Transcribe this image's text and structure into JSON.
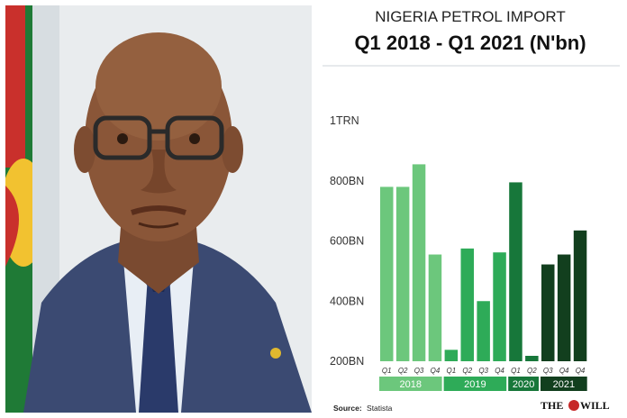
{
  "title_line1": "NIGERIA PETROL IMPORT",
  "title_line2": "Q1 2018 - Q1  2021 (N'bn)",
  "source_label": "Source:",
  "source_value": "Statista",
  "logo_left": "THE",
  "logo_right": "WILL",
  "colors": {
    "y2018": "#6cc77c",
    "y2019": "#2eab58",
    "y2020": "#17773a",
    "y2021": "#123f1e"
  },
  "chart_data": {
    "type": "bar",
    "title": "Q1 2018 - Q1  2021 (N'bn)",
    "ylim": [
      200,
      1000
    ],
    "yticks": [
      {
        "value": 200,
        "label": "200BN"
      },
      {
        "value": 400,
        "label": "400BN"
      },
      {
        "value": 600,
        "label": "600BN"
      },
      {
        "value": 800,
        "label": "800BN"
      },
      {
        "value": 1000,
        "label": "1TRN"
      }
    ],
    "groups": [
      {
        "year": "2018",
        "color": "#6cc77c",
        "quarters": [
          "Q1",
          "Q2",
          "Q3",
          "Q4"
        ],
        "values": [
          780,
          780,
          855,
          555
        ]
      },
      {
        "year": "2019",
        "color": "#2eab58",
        "quarters": [
          "Q1",
          "Q2",
          "Q3",
          "Q4"
        ],
        "values": [
          238,
          575,
          400,
          562
        ]
      },
      {
        "year": "2020",
        "color": "#17773a",
        "quarters": [
          "Q1",
          "Q2"
        ],
        "values": [
          795,
          218
        ]
      },
      {
        "year": "2021",
        "color": "#123f1e",
        "quarters": [
          "Q3",
          "Q4",
          "Q4"
        ],
        "values": [
          522,
          555,
          635
        ]
      }
    ]
  }
}
